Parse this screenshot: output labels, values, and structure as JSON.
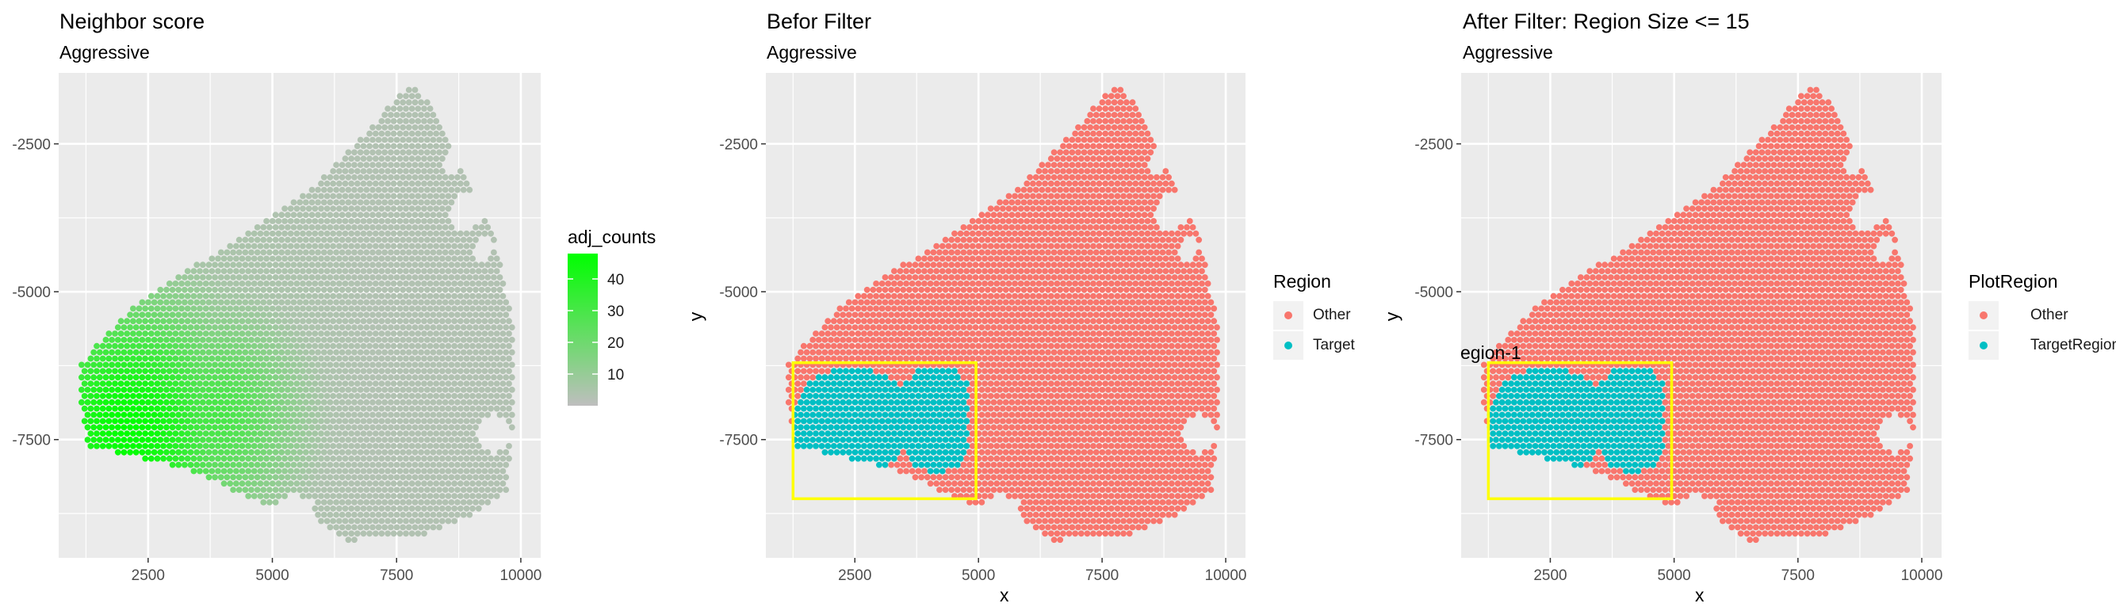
{
  "colors": {
    "panel_bg": "#EBEBEB",
    "grid": "#FFFFFF",
    "other": "#F8766D",
    "target": "#00BFC4",
    "gradient_low": "#BEBEBE",
    "gradient_high": "#00FF00",
    "highlight_box": "#FFFF00"
  },
  "chart_data": [
    {
      "type": "scatter",
      "title": "Neighbor score",
      "subtitle": "Aggressive",
      "xlabel": "",
      "ylabel": "",
      "xlim": [
        700,
        10400
      ],
      "ylim": [
        -9500,
        -1300
      ],
      "x_ticks": [
        2500,
        5000,
        7500,
        10000
      ],
      "x_tick_labels": [
        "2500",
        "5000",
        "7500",
        "10000"
      ],
      "y_ticks": [
        -2500,
        -5000,
        -7500
      ],
      "y_tick_labels": [
        "-2500",
        "-5000",
        "-7500"
      ],
      "grid": true,
      "legend": {
        "title": "adj_counts",
        "placement": "right",
        "kind": "colorbar",
        "range": [
          0,
          48
        ],
        "ticks": [
          10,
          20,
          30,
          40
        ],
        "tick_labels": [
          "10",
          "20",
          "30",
          "40"
        ]
      },
      "color_mode": "gradient",
      "hotspots": [
        {
          "x": 2100,
          "y": -7300,
          "value": 48,
          "spread": 1500
        },
        {
          "x": 3800,
          "y": -7100,
          "value": 30,
          "spread": 1200
        }
      ]
    },
    {
      "type": "scatter",
      "title": "Befor Filter",
      "subtitle": "Aggressive",
      "xlabel": "x",
      "ylabel": "y",
      "xlim": [
        700,
        10400
      ],
      "ylim": [
        -9500,
        -1300
      ],
      "x_ticks": [
        2500,
        5000,
        7500,
        10000
      ],
      "x_tick_labels": [
        "2500",
        "5000",
        "7500",
        "10000"
      ],
      "y_ticks": [
        -2500,
        -5000,
        -7500
      ],
      "y_tick_labels": [
        "-2500",
        "-5000",
        "-7500"
      ],
      "grid": true,
      "legend": {
        "title": "Region",
        "placement": "right",
        "kind": "categorical",
        "entries": [
          {
            "label": "Other",
            "color": "#F8766D"
          },
          {
            "label": "Target",
            "color": "#00BFC4"
          }
        ]
      },
      "color_mode": "region",
      "highlight_box": {
        "x": [
          1250,
          4950
        ],
        "y": [
          -8500,
          -6200
        ],
        "label": ""
      }
    },
    {
      "type": "scatter",
      "title": "After Filter: Region Size <= 15",
      "subtitle": "Aggressive",
      "xlabel": "x",
      "ylabel": "y",
      "xlim": [
        700,
        10400
      ],
      "ylim": [
        -9500,
        -1300
      ],
      "x_ticks": [
        2500,
        5000,
        7500,
        10000
      ],
      "x_tick_labels": [
        "2500",
        "5000",
        "7500",
        "10000"
      ],
      "y_ticks": [
        -2500,
        -5000,
        -7500
      ],
      "y_tick_labels": [
        "-2500",
        "-5000",
        "-7500"
      ],
      "grid": true,
      "legend": {
        "title": "PlotRegion",
        "placement": "right",
        "kind": "categorical",
        "entries": [
          {
            "label": "Other",
            "color": "#F8766D"
          },
          {
            "label": "TargetRegion",
            "color": "#00BFC4"
          }
        ]
      },
      "color_mode": "region",
      "highlight_box": {
        "x": [
          1250,
          4950
        ],
        "y": [
          -8500,
          -6200
        ],
        "label": "egion-1"
      }
    }
  ]
}
